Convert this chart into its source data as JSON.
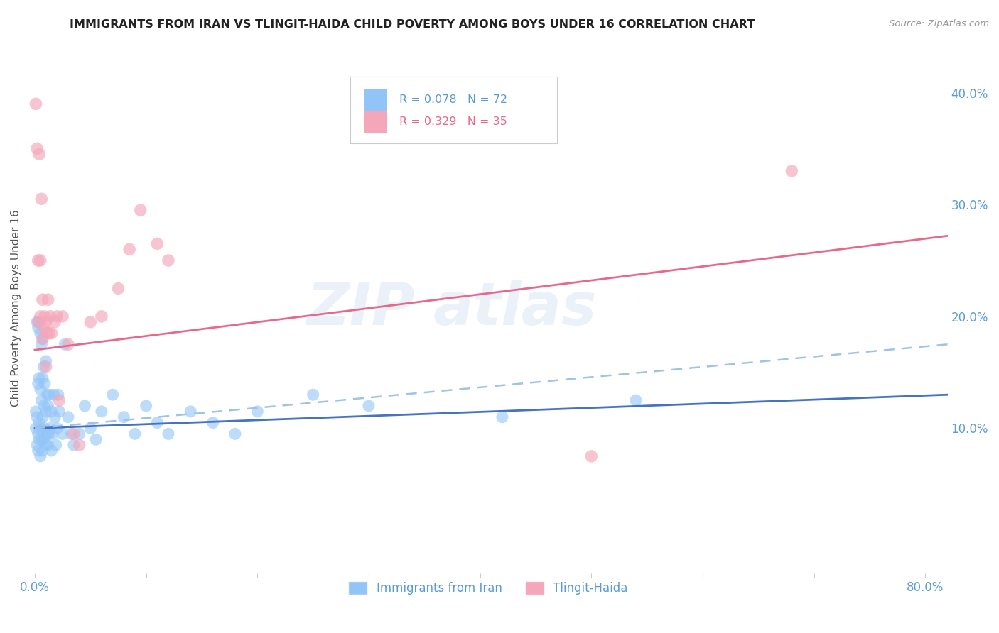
{
  "title": "IMMIGRANTS FROM IRAN VS TLINGIT-HAIDA CHILD POVERTY AMONG BOYS UNDER 16 CORRELATION CHART",
  "source": "Source: ZipAtlas.com",
  "ylabel": "Child Poverty Among Boys Under 16",
  "x_tick_labels_ends": [
    "0.0%",
    "80.0%"
  ],
  "x_tick_vals": [
    0.0,
    0.1,
    0.2,
    0.3,
    0.4,
    0.5,
    0.6,
    0.7,
    0.8
  ],
  "y_tick_labels": [
    "10.0%",
    "20.0%",
    "30.0%",
    "40.0%"
  ],
  "y_tick_vals": [
    0.1,
    0.2,
    0.3,
    0.4
  ],
  "xlim": [
    -0.005,
    0.82
  ],
  "ylim": [
    -0.03,
    0.445
  ],
  "legend_r1": "R = 0.078",
  "legend_n1": "N = 72",
  "legend_r2": "R = 0.329",
  "legend_n2": "N = 35",
  "legend_label1": "Immigrants from Iran",
  "legend_label2": "Tlingit-Haida",
  "color_blue": "#92C5F7",
  "color_pink": "#F4A7B9",
  "trend_blue": "#4472C4",
  "trend_pink": "#E8688A",
  "trend_dash": "#9DC3E6",
  "axis_color": "#5B9BD5",
  "grid_color": "#DDDDDD",
  "blue_points_x": [
    0.001,
    0.001,
    0.002,
    0.002,
    0.002,
    0.003,
    0.003,
    0.003,
    0.003,
    0.004,
    0.004,
    0.004,
    0.004,
    0.005,
    0.005,
    0.005,
    0.005,
    0.006,
    0.006,
    0.006,
    0.007,
    0.007,
    0.007,
    0.007,
    0.008,
    0.008,
    0.008,
    0.009,
    0.009,
    0.01,
    0.01,
    0.01,
    0.011,
    0.011,
    0.012,
    0.012,
    0.013,
    0.013,
    0.014,
    0.015,
    0.015,
    0.016,
    0.017,
    0.018,
    0.019,
    0.02,
    0.021,
    0.022,
    0.025,
    0.027,
    0.03,
    0.033,
    0.035,
    0.04,
    0.045,
    0.05,
    0.055,
    0.06,
    0.07,
    0.08,
    0.09,
    0.1,
    0.11,
    0.12,
    0.14,
    0.16,
    0.18,
    0.2,
    0.25,
    0.3,
    0.42,
    0.54
  ],
  "blue_points_y": [
    0.1,
    0.115,
    0.085,
    0.11,
    0.195,
    0.08,
    0.095,
    0.14,
    0.19,
    0.09,
    0.105,
    0.145,
    0.195,
    0.075,
    0.1,
    0.135,
    0.185,
    0.09,
    0.125,
    0.175,
    0.08,
    0.11,
    0.145,
    0.18,
    0.09,
    0.12,
    0.155,
    0.1,
    0.14,
    0.085,
    0.115,
    0.16,
    0.095,
    0.13,
    0.085,
    0.12,
    0.095,
    0.13,
    0.1,
    0.08,
    0.115,
    0.095,
    0.13,
    0.11,
    0.085,
    0.1,
    0.13,
    0.115,
    0.095,
    0.175,
    0.11,
    0.095,
    0.085,
    0.095,
    0.12,
    0.1,
    0.09,
    0.115,
    0.13,
    0.11,
    0.095,
    0.12,
    0.105,
    0.095,
    0.115,
    0.105,
    0.095,
    0.115,
    0.13,
    0.12,
    0.11,
    0.125
  ],
  "pink_points_x": [
    0.001,
    0.002,
    0.003,
    0.003,
    0.004,
    0.005,
    0.005,
    0.006,
    0.007,
    0.007,
    0.008,
    0.009,
    0.01,
    0.01,
    0.011,
    0.012,
    0.013,
    0.014,
    0.015,
    0.018,
    0.02,
    0.022,
    0.025,
    0.03,
    0.035,
    0.04,
    0.05,
    0.06,
    0.075,
    0.085,
    0.095,
    0.11,
    0.12,
    0.5,
    0.68
  ],
  "pink_points_y": [
    0.39,
    0.35,
    0.195,
    0.25,
    0.345,
    0.2,
    0.25,
    0.305,
    0.18,
    0.215,
    0.19,
    0.2,
    0.155,
    0.195,
    0.185,
    0.215,
    0.185,
    0.2,
    0.185,
    0.195,
    0.2,
    0.125,
    0.2,
    0.175,
    0.095,
    0.085,
    0.195,
    0.2,
    0.225,
    0.26,
    0.295,
    0.265,
    0.25,
    0.075,
    0.33
  ],
  "blue_trend_x": [
    0.0,
    0.82
  ],
  "blue_trend_y": [
    0.1,
    0.13
  ],
  "dash_trend_x": [
    0.0,
    0.82
  ],
  "dash_trend_y": [
    0.1,
    0.175
  ],
  "pink_trend_x": [
    0.0,
    0.82
  ],
  "pink_trend_y": [
    0.17,
    0.272
  ]
}
